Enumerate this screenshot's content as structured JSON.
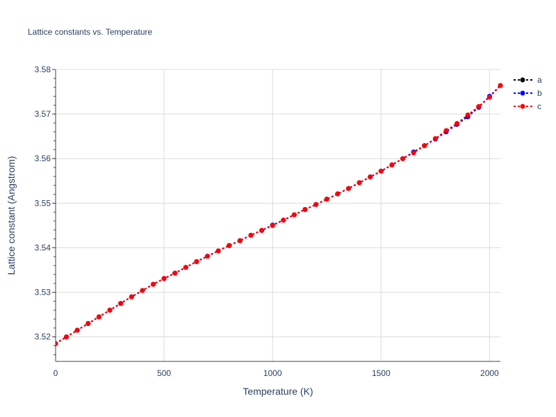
{
  "chart_data": {
    "type": "line",
    "title": "Lattice constants vs. Temperature",
    "xlabel": "Temperature (K)",
    "ylabel": "Lattice constant (Angstrom)",
    "xlim": [
      0,
      2050
    ],
    "ylim": [
      3.5145,
      3.58
    ],
    "xticks": [
      0,
      500,
      1000,
      1500,
      2000
    ],
    "xtick_labels": [
      "0",
      "500",
      "1000",
      "1500",
      "2000"
    ],
    "yticks": [
      3.52,
      3.53,
      3.54,
      3.55,
      3.56,
      3.57,
      3.58
    ],
    "ytick_labels": [
      "3.52",
      "3.53",
      "3.54",
      "3.55",
      "3.56",
      "3.57",
      "3.58"
    ],
    "grid": true,
    "legend_position": "top-right",
    "x": [
      0,
      50,
      100,
      150,
      200,
      250,
      300,
      350,
      400,
      450,
      500,
      550,
      600,
      650,
      700,
      750,
      800,
      850,
      900,
      950,
      1000,
      1050,
      1100,
      1150,
      1200,
      1250,
      1300,
      1350,
      1400,
      1450,
      1500,
      1550,
      1600,
      1650,
      1700,
      1750,
      1800,
      1850,
      1900,
      1950,
      2000,
      2050
    ],
    "series": [
      {
        "name": "a",
        "color": "#000000",
        "values": [
          3.5185,
          3.52,
          3.5215,
          3.523,
          3.5245,
          3.526,
          3.5275,
          3.529,
          3.5304,
          3.5318,
          3.5331,
          3.5343,
          3.5356,
          3.5369,
          3.5381,
          3.5393,
          3.5405,
          3.5416,
          3.5428,
          3.5439,
          3.545,
          3.5462,
          3.5474,
          3.5486,
          3.5497,
          3.5509,
          3.5521,
          3.5533,
          3.5546,
          3.5559,
          3.5572,
          3.5586,
          3.56,
          3.5614,
          3.5629,
          3.5644,
          3.5661,
          3.5677,
          3.5695,
          3.5716,
          3.5739,
          3.5764
        ]
      },
      {
        "name": "b",
        "color": "#0000ff",
        "values": [
          3.5185,
          3.52,
          3.5215,
          3.523,
          3.5245,
          3.526,
          3.5275,
          3.529,
          3.5304,
          3.5318,
          3.5331,
          3.5343,
          3.5356,
          3.5369,
          3.5381,
          3.5393,
          3.5405,
          3.5416,
          3.5428,
          3.5439,
          3.5451,
          3.5462,
          3.5474,
          3.5486,
          3.5497,
          3.5509,
          3.5521,
          3.5533,
          3.5546,
          3.5559,
          3.5572,
          3.5586,
          3.56,
          3.5615,
          3.5629,
          3.5644,
          3.566,
          3.5677,
          3.5694,
          3.5715,
          3.574,
          3.5764
        ]
      },
      {
        "name": "c",
        "color": "#ff0000",
        "values": [
          3.5185,
          3.52,
          3.5215,
          3.523,
          3.5245,
          3.526,
          3.5275,
          3.529,
          3.5304,
          3.5318,
          3.5331,
          3.5343,
          3.5356,
          3.5369,
          3.5381,
          3.5393,
          3.5405,
          3.5416,
          3.5428,
          3.5439,
          3.545,
          3.5462,
          3.5474,
          3.5486,
          3.5497,
          3.5509,
          3.5521,
          3.5533,
          3.5546,
          3.5559,
          3.5572,
          3.5586,
          3.56,
          3.5613,
          3.5629,
          3.5645,
          3.5663,
          3.5679,
          3.5698,
          3.5717,
          3.5738,
          3.5764
        ]
      }
    ]
  }
}
